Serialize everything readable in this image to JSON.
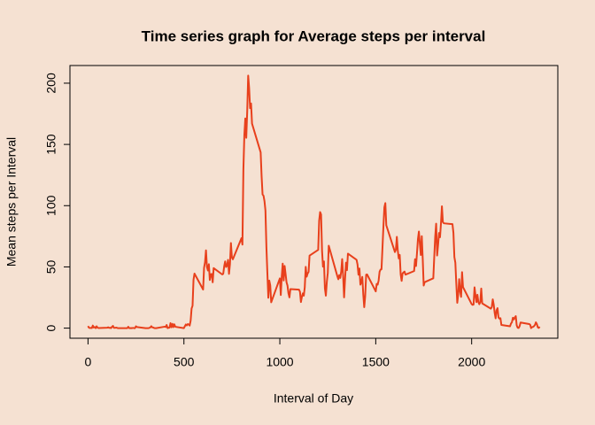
{
  "chart_data": {
    "type": "line",
    "title": "Time series graph for Average steps per interval",
    "xlabel": "Interval of Day",
    "ylabel": "Mean steps per Interval",
    "xlim": [
      -94.2,
      2449.2
    ],
    "ylim": [
      -8.25,
      214.42
    ],
    "xticks": [
      0,
      500,
      1000,
      1500,
      2000
    ],
    "yticks": [
      0,
      50,
      100,
      150,
      200
    ],
    "series": [
      {
        "color": "#e8401c",
        "x": [
          0,
          5,
          10,
          15,
          20,
          25,
          30,
          35,
          40,
          45,
          50,
          55,
          100,
          105,
          110,
          115,
          120,
          125,
          130,
          135,
          140,
          145,
          150,
          155,
          200,
          205,
          210,
          215,
          220,
          225,
          230,
          235,
          240,
          245,
          250,
          255,
          300,
          305,
          310,
          315,
          320,
          325,
          330,
          335,
          340,
          345,
          350,
          355,
          400,
          405,
          410,
          415,
          420,
          425,
          430,
          435,
          440,
          445,
          450,
          455,
          500,
          505,
          510,
          515,
          520,
          525,
          530,
          535,
          540,
          545,
          550,
          555,
          600,
          605,
          610,
          615,
          620,
          625,
          630,
          635,
          640,
          645,
          650,
          655,
          700,
          705,
          710,
          715,
          720,
          725,
          730,
          735,
          740,
          745,
          750,
          755,
          800,
          805,
          810,
          815,
          820,
          825,
          830,
          835,
          840,
          845,
          850,
          855,
          900,
          905,
          910,
          915,
          920,
          925,
          930,
          935,
          940,
          945,
          950,
          955,
          1000,
          1005,
          1010,
          1015,
          1020,
          1025,
          1030,
          1035,
          1040,
          1045,
          1050,
          1055,
          1100,
          1105,
          1110,
          1115,
          1120,
          1125,
          1130,
          1135,
          1140,
          1145,
          1150,
          1155,
          1200,
          1205,
          1210,
          1215,
          1220,
          1225,
          1230,
          1235,
          1240,
          1245,
          1250,
          1255,
          1300,
          1305,
          1310,
          1315,
          1320,
          1325,
          1330,
          1335,
          1340,
          1345,
          1350,
          1355,
          1400,
          1405,
          1410,
          1415,
          1420,
          1425,
          1430,
          1435,
          1440,
          1445,
          1450,
          1455,
          1500,
          1505,
          1510,
          1515,
          1520,
          1525,
          1530,
          1535,
          1540,
          1545,
          1550,
          1555,
          1600,
          1605,
          1610,
          1615,
          1620,
          1625,
          1630,
          1635,
          1640,
          1645,
          1650,
          1655,
          1700,
          1705,
          1710,
          1715,
          1720,
          1725,
          1730,
          1735,
          1740,
          1745,
          1750,
          1755,
          1800,
          1805,
          1810,
          1815,
          1820,
          1825,
          1830,
          1835,
          1840,
          1845,
          1850,
          1855,
          1900,
          1905,
          1910,
          1915,
          1920,
          1925,
          1930,
          1935,
          1940,
          1945,
          1950,
          1955,
          2000,
          2005,
          2010,
          2015,
          2020,
          2025,
          2030,
          2035,
          2040,
          2045,
          2050,
          2055,
          2100,
          2105,
          2110,
          2115,
          2120,
          2125,
          2130,
          2135,
          2140,
          2145,
          2150,
          2155,
          2200,
          2205,
          2210,
          2215,
          2220,
          2225,
          2230,
          2235,
          2240,
          2245,
          2250,
          2255,
          2300,
          2305,
          2310,
          2315,
          2320,
          2325,
          2330,
          2335,
          2340,
          2345,
          2350,
          2355
        ],
        "values": [
          1.7,
          0.3,
          0.1,
          0.2,
          0.1,
          2.1,
          0.5,
          0.9,
          0,
          1.5,
          0.3,
          0.1,
          0.3,
          0.7,
          0.2,
          0.3,
          0,
          1.1,
          1.8,
          0.2,
          0.2,
          0.4,
          0.3,
          0,
          0,
          0,
          1.1,
          0,
          0,
          0.1,
          0,
          0.2,
          0,
          0,
          1.5,
          0.9,
          0,
          0,
          0,
          0,
          0.2,
          0.6,
          1.6,
          0.6,
          0.5,
          0.1,
          0,
          0,
          1.2,
          0.9,
          2.6,
          0,
          0.3,
          0.4,
          4.1,
          0.7,
          3.5,
          0.8,
          3.1,
          1.1,
          0,
          1.6,
          3,
          2.2,
          3.3,
          3,
          2.1,
          6.1,
          16,
          18.3,
          39.5,
          44.5,
          31.5,
          49.3,
          53.8,
          63.5,
          50,
          47.1,
          52.2,
          39.3,
          44,
          44.2,
          37.4,
          49,
          43.8,
          44.4,
          50.5,
          54.5,
          49.9,
          51,
          55.7,
          44.3,
          52.3,
          69.5,
          57.8,
          56.2,
          73.4,
          68.2,
          129.4,
          157.5,
          171.2,
          155.4,
          177.3,
          206.2,
          195.9,
          179.6,
          183.4,
          167,
          143.5,
          124,
          109.1,
          108.1,
          103.7,
          96,
          66.2,
          45.2,
          24.8,
          38.8,
          35,
          21.1,
          40.6,
          27,
          42.4,
          52.7,
          38.9,
          50.8,
          44.3,
          37.4,
          34.7,
          28.3,
          25.1,
          31.9,
          31.4,
          29.7,
          21.3,
          25.5,
          28.4,
          26.5,
          33.4,
          50,
          42,
          44.6,
          46,
          59.2,
          63.9,
          87.7,
          94.8,
          92.8,
          63.4,
          50.2,
          54.5,
          32.4,
          26.5,
          37.7,
          45.1,
          67.3,
          42.3,
          39.9,
          43.3,
          41,
          46.2,
          56.4,
          42.8,
          25.1,
          40,
          53.5,
          47.3,
          60.8,
          55.8,
          52,
          43.6,
          48.7,
          35.5,
          37.5,
          41.8,
          27.5,
          17.1,
          26.1,
          43.6,
          43.8,
          30,
          36.1,
          35.5,
          38.8,
          46,
          47.8,
          48.1,
          65.3,
          82.9,
          98.7,
          102.1,
          84,
          62.1,
          64.1,
          74.5,
          63.2,
          56.9,
          59.8,
          43.9,
          38.6,
          44.7,
          45.5,
          46.2,
          43.7,
          46.6,
          56.3,
          50.7,
          61.2,
          72.7,
          78.9,
          68.9,
          59.7,
          75.1,
          56.5,
          34.8,
          37.5,
          40.7,
          58,
          74.7,
          85.3,
          59.3,
          67.8,
          77.7,
          74.2,
          85.3,
          99.5,
          86.6,
          85.6,
          84.9,
          77.8,
          58,
          53.4,
          36.3,
          20.7,
          27.4,
          40,
          30.2,
          25.5,
          45.7,
          33.5,
          19.6,
          19,
          19.3,
          33.3,
          26.8,
          21.2,
          27.3,
          21.3,
          19.5,
          21.3,
          32.3,
          20.2,
          15.9,
          17.2,
          23.5,
          19.2,
          12.5,
          8,
          14.7,
          16.3,
          8.7,
          7.8,
          8.1,
          2.6,
          1.5,
          3.7,
          4.8,
          8.5,
          7.1,
          8.7,
          9.8,
          2.2,
          0.3,
          0.1,
          1.6,
          4.6,
          3.3,
          2.8,
          0,
          0.8,
          1,
          1.6,
          2.6,
          4.7,
          3.3,
          0.6,
          0.2,
          1.1
        ]
      }
    ]
  }
}
